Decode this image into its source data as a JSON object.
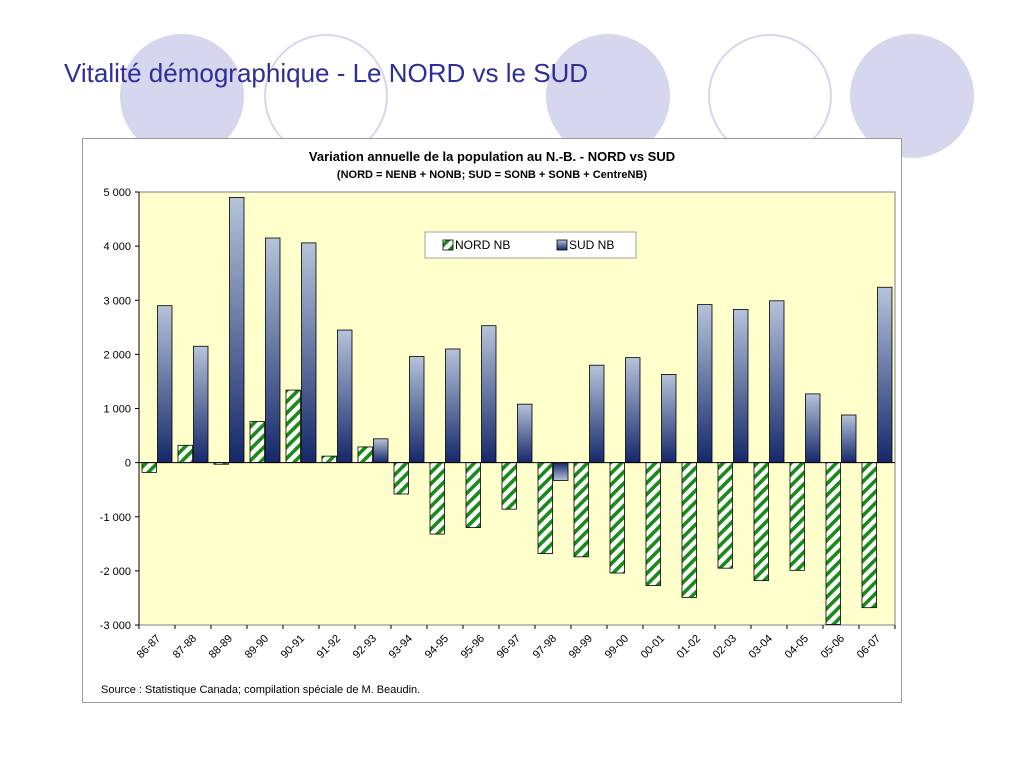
{
  "slide": {
    "title": "Vitalité démographique - Le NORD vs le SUD",
    "title_color": "#2e2e9a",
    "circle_color": "#d6d6ee"
  },
  "chart_data": {
    "type": "bar",
    "title": "Variation annuelle de la population au N.-B. - NORD vs SUD",
    "subtitle": "(NORD = NENB + NONB; SUD = SONB + SONB + CentreNB)",
    "categories": [
      "86-87",
      "87-88",
      "88-89",
      "89-90",
      "90-91",
      "91-92",
      "92-93",
      "93-94",
      "94-95",
      "95-96",
      "96-97",
      "97-98",
      "98-99",
      "99-00",
      "00-01",
      "01-02",
      "02-03",
      "03-04",
      "04-05",
      "05-06",
      "06-07"
    ],
    "series": [
      {
        "name": "NORD NB",
        "pattern": "diagonal-stripes",
        "color": "#1a8a1a",
        "values": [
          -180,
          320,
          -30,
          760,
          1340,
          120,
          290,
          -580,
          -1320,
          -1200,
          -860,
          -1680,
          -1740,
          -2040,
          -2270,
          -2490,
          -1950,
          -2180,
          -1990,
          -2990,
          -2680
        ]
      },
      {
        "name": "SUD NB",
        "pattern": "vertical-gradient",
        "color": "#1f3a7a",
        "values": [
          2900,
          2150,
          4900,
          4150,
          4060,
          2450,
          440,
          1960,
          2100,
          2530,
          1080,
          -330,
          1800,
          1940,
          1630,
          2920,
          2830,
          2990,
          1270,
          880,
          3240
        ]
      }
    ],
    "ylim": [
      -3000,
      5000
    ],
    "yticks": [
      "5 000",
      "4 000",
      "3 000",
      "2 000",
      "1 000",
      "0",
      "-1 000",
      "-2 000",
      "-3 000"
    ],
    "ytick_values": [
      5000,
      4000,
      3000,
      2000,
      1000,
      0,
      -1000,
      -2000,
      -3000
    ],
    "grid": false,
    "legend_position": "top-center",
    "plot_background": "#ffffcc",
    "source": "Source : Statistique Canada; compilation spéciale de M. Beaudin."
  }
}
